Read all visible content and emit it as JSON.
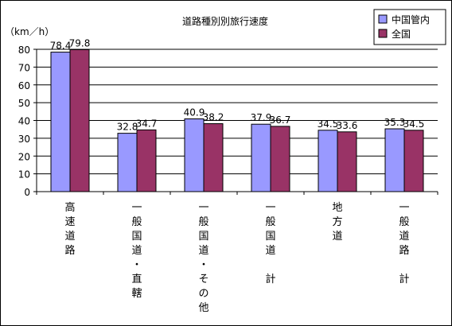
{
  "chart_data": {
    "type": "bar",
    "title": "道路種別別旅行速度",
    "ylabel": "（km／h）",
    "ylim": [
      0,
      80
    ],
    "yticks": [
      0,
      10,
      20,
      30,
      40,
      50,
      60,
      70,
      80
    ],
    "grid": true,
    "legend_position": "top-right",
    "categories": [
      [
        "高",
        "速",
        "道",
        "路"
      ],
      [
        "一",
        "般",
        "国",
        "道",
        "・",
        "直",
        "轄"
      ],
      [
        "一",
        "般",
        "国",
        "道",
        "・",
        "そ",
        "の",
        "他"
      ],
      [
        "一",
        "般",
        "国",
        "道",
        "",
        "計"
      ],
      [
        "地",
        "方",
        "道"
      ],
      [
        "一",
        "般",
        "道",
        "路",
        "",
        "計"
      ]
    ],
    "series": [
      {
        "name": "中国管内",
        "color": "#9999ff",
        "values": [
          78.4,
          32.8,
          40.9,
          37.9,
          34.5,
          35.3
        ]
      },
      {
        "name": "全国",
        "color": "#993366",
        "values": [
          79.8,
          34.7,
          38.2,
          36.7,
          33.6,
          34.5
        ]
      }
    ]
  }
}
